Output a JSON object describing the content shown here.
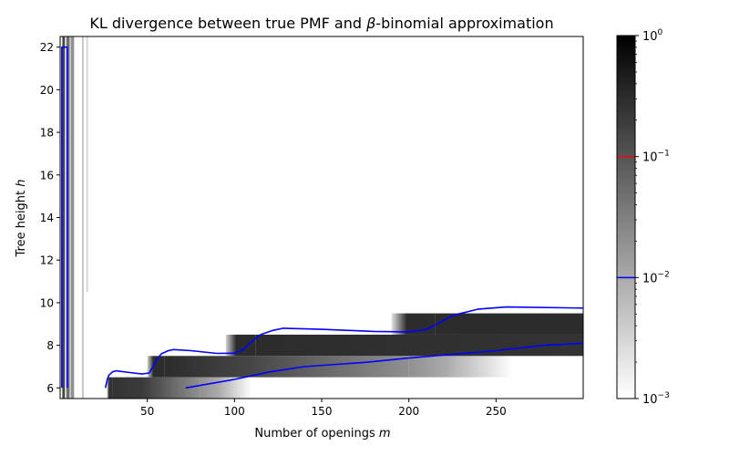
{
  "chart_data": {
    "type": "heatmap",
    "title_pre": "KL divergence between true PMF and ",
    "title_beta": "β",
    "title_post": "-binomial approximation",
    "xlabel_pre": "Number of openings ",
    "xlabel_var": "m",
    "ylabel_pre": "Tree height ",
    "ylabel_var": "h",
    "xlim": [
      0,
      300
    ],
    "ylim": [
      5.5,
      22.5
    ],
    "xticks": [
      {
        "value": 50,
        "label": "50"
      },
      {
        "value": 100,
        "label": "100"
      },
      {
        "value": 150,
        "label": "150"
      },
      {
        "value": 200,
        "label": "200"
      },
      {
        "value": 250,
        "label": "250"
      }
    ],
    "yticks": [
      {
        "value": 6,
        "label": "6"
      },
      {
        "value": 8,
        "label": "8"
      },
      {
        "value": 10,
        "label": "10"
      },
      {
        "value": 12,
        "label": "12"
      },
      {
        "value": 14,
        "label": "14"
      },
      {
        "value": 16,
        "label": "16"
      },
      {
        "value": 18,
        "label": "18"
      },
      {
        "value": 20,
        "label": "20"
      },
      {
        "value": 22,
        "label": "22"
      }
    ],
    "colormap": "gray_r",
    "color_scale": "log",
    "colorbar": {
      "range": [
        0.001,
        1
      ],
      "ticks": [
        {
          "value": 0.001,
          "base": "10",
          "exp": "−3"
        },
        {
          "value": 0.01,
          "base": "10",
          "exp": "−2"
        },
        {
          "value": 0.1,
          "base": "10",
          "exp": "−1"
        },
        {
          "value": 1,
          "base": "10",
          "exp": "0"
        }
      ],
      "threshold_lines": [
        {
          "value": 0.01,
          "color": "#0000ff"
        },
        {
          "value": 0.1,
          "color": "#ff0000"
        }
      ]
    },
    "bands": [
      {
        "h": 6,
        "x_start": 27,
        "x_end": 30,
        "kl_start": 0.006,
        "kl_peak": 0.25,
        "kl_end": 0.25
      },
      {
        "h": 6,
        "x_start": 30,
        "x_end": 80,
        "kl_start": 0.25,
        "kl_peak": 0.2,
        "kl_end": 0.02
      },
      {
        "h": 6,
        "x_start": 80,
        "x_end": 110,
        "kl_start": 0.02,
        "kl_peak": 0.01,
        "kl_end": 0.001
      },
      {
        "h": 7,
        "x_start": 50,
        "x_end": 60,
        "kl_start": 0.003,
        "kl_peak": 0.3,
        "kl_end": 0.3
      },
      {
        "h": 7,
        "x_start": 60,
        "x_end": 200,
        "kl_start": 0.3,
        "kl_peak": 0.15,
        "kl_end": 0.02
      },
      {
        "h": 7,
        "x_start": 200,
        "x_end": 260,
        "kl_start": 0.02,
        "kl_peak": 0.01,
        "kl_end": 0.001
      },
      {
        "h": 8,
        "x_start": 95,
        "x_end": 112,
        "kl_start": 0.003,
        "kl_peak": 0.3,
        "kl_end": 0.3
      },
      {
        "h": 8,
        "x_start": 112,
        "x_end": 300,
        "kl_start": 0.3,
        "kl_peak": 0.28,
        "kl_end": 0.25
      },
      {
        "h": 9,
        "x_start": 190,
        "x_end": 215,
        "kl_start": 0.002,
        "kl_peak": 0.3,
        "kl_end": 0.3
      },
      {
        "h": 9,
        "x_start": 215,
        "x_end": 300,
        "kl_start": 0.3,
        "kl_peak": 0.3,
        "kl_end": 0.3
      }
    ],
    "strips": [
      {
        "x": 2,
        "width": 1.5,
        "h_min": 5.5,
        "h_max": 22.5,
        "kl": 0.15
      },
      {
        "x": 4.5,
        "width": 2,
        "h_min": 5.5,
        "h_max": 22.5,
        "kl": 0.05
      },
      {
        "x": 7,
        "width": 2,
        "h_min": 5.5,
        "h_max": 22.5,
        "kl": 0.02
      },
      {
        "x": 13,
        "width": 1,
        "h_min": 5.5,
        "h_max": 22.5,
        "kl": 0.005
      },
      {
        "x": 15.5,
        "width": 1,
        "h_min": 10.5,
        "h_max": 22.5,
        "kl": 0.003
      }
    ],
    "series": [
      {
        "color": "#0000ff",
        "points": [
          [
            1,
            6
          ],
          [
            1,
            22
          ],
          [
            4,
            22
          ],
          [
            4,
            6
          ]
        ]
      },
      {
        "color": "#0000ff",
        "points": [
          [
            26,
            6
          ],
          [
            27,
            6.4
          ],
          [
            28,
            6.6
          ],
          [
            30,
            6.75
          ],
          [
            32,
            6.8
          ],
          [
            40,
            6.72
          ],
          [
            47,
            6.65
          ],
          [
            51,
            6.7
          ],
          [
            53,
            6.95
          ],
          [
            55,
            7.3
          ],
          [
            58,
            7.6
          ],
          [
            62,
            7.75
          ],
          [
            65,
            7.8
          ],
          [
            75,
            7.75
          ],
          [
            90,
            7.62
          ],
          [
            100,
            7.63
          ],
          [
            105,
            7.8
          ],
          [
            110,
            8.2
          ],
          [
            115,
            8.5
          ],
          [
            122,
            8.7
          ],
          [
            128,
            8.8
          ],
          [
            150,
            8.75
          ],
          [
            180,
            8.65
          ],
          [
            200,
            8.63
          ],
          [
            210,
            8.75
          ],
          [
            215,
            8.95
          ],
          [
            225,
            9.4
          ],
          [
            240,
            9.7
          ],
          [
            256,
            9.8
          ],
          [
            300,
            9.75
          ]
        ]
      },
      {
        "color": "#0000ff",
        "points": [
          [
            72,
            6.0
          ],
          [
            100,
            6.4
          ],
          [
            120,
            6.75
          ],
          [
            140,
            7.0
          ],
          [
            175,
            7.2
          ],
          [
            200,
            7.4
          ],
          [
            250,
            7.75
          ],
          [
            278,
            8.0
          ],
          [
            300,
            8.1
          ]
        ]
      }
    ]
  }
}
